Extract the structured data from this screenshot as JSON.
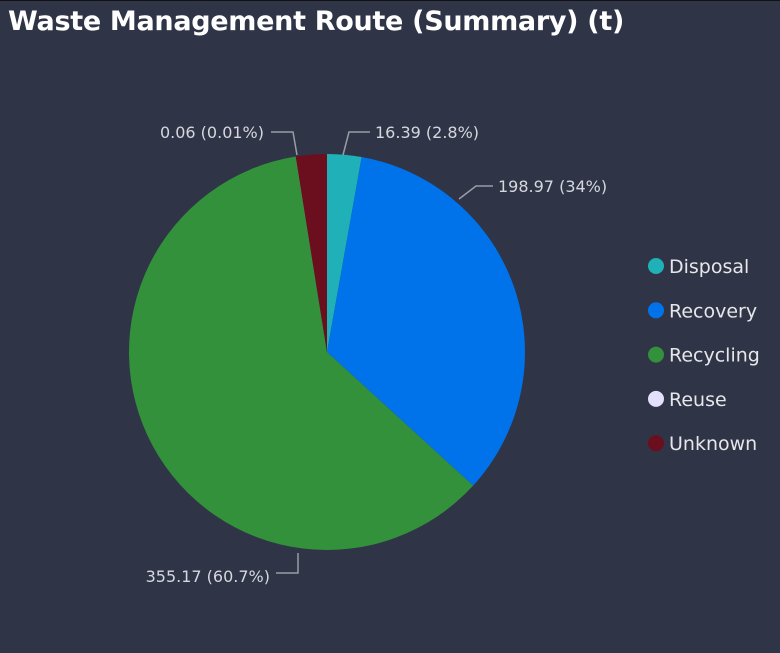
{
  "chart_data": {
    "type": "pie",
    "title": "Waste Management Route (Summary) (t)",
    "legend_position": "right",
    "slices": [
      {
        "name": "Disposal",
        "value": 16.39,
        "label": "16.39 (2.8%)",
        "color": "#1fb1b7"
      },
      {
        "name": "Recovery",
        "value": 198.97,
        "label": "198.97 (34%)",
        "color": "#0073ea"
      },
      {
        "name": "Recycling",
        "value": 355.17,
        "label": "355.17 (60.7%)",
        "color": "#32913a"
      },
      {
        "name": "Reuse",
        "value": 0.06,
        "label": "0.06 (0.01%)",
        "color": "#e3e0fb"
      },
      {
        "name": "Unknown",
        "value": 14.8,
        "label": "",
        "color": "#6b0f1f"
      }
    ]
  }
}
